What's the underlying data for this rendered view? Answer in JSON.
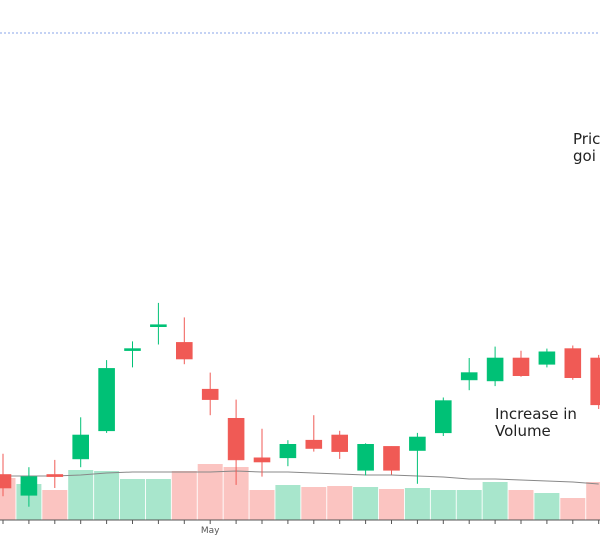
{
  "chart_data": {
    "type": "candlestick",
    "x_tick_labels": [
      {
        "label": "May",
        "index": 8
      }
    ],
    "y_range": [
      78,
      128
    ],
    "volume_range": [
      0,
      100
    ],
    "colors": {
      "up": "#00c176",
      "down": "#f05a55",
      "up_volume": "#a8e6cc",
      "down_volume": "#fbc4c1",
      "volume_ma": "#888888",
      "top_line": "#8aa5e8",
      "axis": "#555555"
    },
    "candles": [
      {
        "o": 84.3,
        "h": 86.3,
        "l": 82.2,
        "c": 83.0,
        "v": 42
      },
      {
        "o": 82.3,
        "h": 85.0,
        "l": 81.2,
        "c": 84.1,
        "v": 36
      },
      {
        "o": 84.3,
        "h": 85.7,
        "l": 83.0,
        "c": 84.1,
        "v": 30
      },
      {
        "o": 85.8,
        "h": 89.8,
        "l": 85.0,
        "c": 88.1,
        "v": 50
      },
      {
        "o": 88.5,
        "h": 95.3,
        "l": 88.3,
        "c": 94.5,
        "v": 49
      },
      {
        "o": 96.4,
        "h": 97.1,
        "l": 94.6,
        "c": 96.4,
        "v": 41
      },
      {
        "o": 98.7,
        "h": 100.8,
        "l": 96.8,
        "c": 98.7,
        "v": 41
      },
      {
        "o": 97.0,
        "h": 99.4,
        "l": 94.9,
        "c": 95.4,
        "v": 49
      },
      {
        "o": 92.5,
        "h": 94.1,
        "l": 90.0,
        "c": 91.5,
        "v": 56
      },
      {
        "o": 89.7,
        "h": 91.5,
        "l": 83.3,
        "c": 85.7,
        "v": 53
      },
      {
        "o": 85.9,
        "h": 88.7,
        "l": 84.1,
        "c": 85.5,
        "v": 30
      },
      {
        "o": 85.9,
        "h": 87.6,
        "l": 85.1,
        "c": 87.2,
        "v": 35
      },
      {
        "o": 87.6,
        "h": 90.0,
        "l": 86.5,
        "c": 86.8,
        "v": 33
      },
      {
        "o": 88.1,
        "h": 88.5,
        "l": 85.8,
        "c": 86.5,
        "v": 34
      },
      {
        "o": 84.7,
        "h": 87.3,
        "l": 84.2,
        "c": 87.2,
        "v": 33
      },
      {
        "o": 87.0,
        "h": 87.0,
        "l": 84.3,
        "c": 84.7,
        "v": 31
      },
      {
        "o": 86.6,
        "h": 88.3,
        "l": 83.4,
        "c": 87.9,
        "v": 32
      },
      {
        "o": 88.3,
        "h": 91.7,
        "l": 88.0,
        "c": 91.4,
        "v": 30
      },
      {
        "o": 93.4,
        "h": 95.5,
        "l": 92.4,
        "c": 94.1,
        "v": 30
      },
      {
        "o": 93.3,
        "h": 96.6,
        "l": 92.8,
        "c": 95.5,
        "v": 38
      },
      {
        "o": 95.5,
        "h": 96.2,
        "l": 93.7,
        "c": 93.8,
        "v": 30
      },
      {
        "o": 94.9,
        "h": 96.4,
        "l": 94.6,
        "c": 96.1,
        "v": 27
      },
      {
        "o": 96.4,
        "h": 96.7,
        "l": 93.4,
        "c": 93.6,
        "v": 22
      },
      {
        "o": 95.5,
        "h": 95.8,
        "l": 90.6,
        "c": 91.0,
        "v": 38
      }
    ],
    "volume_ma": [
      44,
      44,
      44,
      45,
      47,
      48,
      48,
      48,
      48,
      49,
      48,
      48,
      47,
      46,
      45,
      45,
      44,
      43,
      41,
      41,
      40,
      39,
      38,
      36
    ],
    "annotations": [
      {
        "text": "Pric\ngoi"
      },
      {
        "text": "Increase in\nVolume"
      }
    ]
  }
}
